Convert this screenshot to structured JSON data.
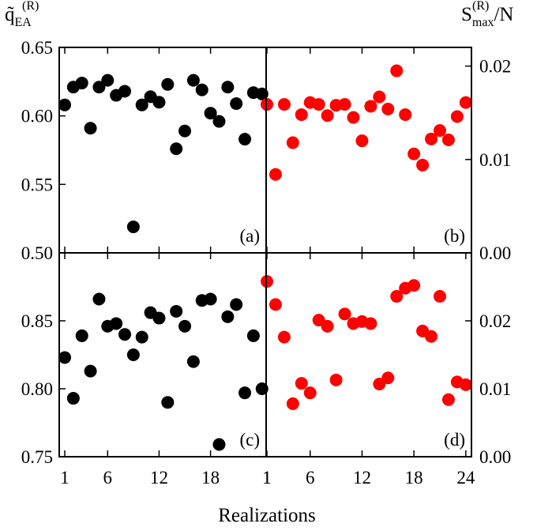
{
  "labels": {
    "left_axis_main": "q̃",
    "left_axis_sub": "EA",
    "left_axis_sup": "(R)",
    "right_axis_main": "S",
    "right_axis_sub": "max",
    "right_axis_sup": "(R)",
    "right_axis_suffix": "/N",
    "xlabel": "Realizations"
  },
  "chart_data": [
    {
      "panel": "(a)",
      "type": "scatter",
      "color": "#000000",
      "ylim": [
        0.5,
        0.65
      ],
      "yticks": [
        "0.50",
        "0.55",
        "0.60",
        "0.65"
      ],
      "xticks": [
        "1",
        "6",
        "12",
        "18"
      ],
      "x": [
        1,
        2,
        3,
        4,
        5,
        6,
        7,
        8,
        9,
        10,
        11,
        12,
        13,
        14,
        15,
        16,
        17,
        18,
        19,
        20,
        21,
        22,
        23,
        24
      ],
      "values": [
        0.608,
        0.621,
        0.624,
        0.591,
        0.621,
        0.626,
        0.615,
        0.618,
        0.519,
        0.608,
        0.614,
        0.61,
        0.623,
        0.576,
        0.589,
        0.626,
        0.619,
        0.602,
        0.596,
        0.621,
        0.609,
        0.583,
        0.617,
        0.616
      ]
    },
    {
      "panel": "(b)",
      "type": "scatter",
      "color": "#ff0000",
      "ylim": [
        0.0,
        0.022
      ],
      "yticks": [
        "0.00",
        "0.01",
        "0.02"
      ],
      "xticks": [
        "1",
        "6",
        "12",
        "18"
      ],
      "x": [
        1,
        2,
        3,
        4,
        5,
        6,
        7,
        8,
        9,
        10,
        11,
        12,
        13,
        14,
        15,
        16,
        17,
        18,
        19,
        20,
        21,
        22,
        23,
        24
      ],
      "values": [
        0.0159,
        0.0084,
        0.0159,
        0.0118,
        0.0148,
        0.0161,
        0.0159,
        0.0147,
        0.0158,
        0.0159,
        0.0145,
        0.012,
        0.0157,
        0.0167,
        0.0154,
        0.0195,
        0.0148,
        0.0106,
        0.0094,
        0.0122,
        0.0131,
        0.0121,
        0.0146,
        0.0161
      ]
    },
    {
      "panel": "(c)",
      "type": "scatter",
      "color": "#000000",
      "ylim": [
        0.75,
        0.9
      ],
      "yticks": [
        "0.75",
        "0.80",
        "0.85"
      ],
      "xticks": [
        "1",
        "6",
        "12",
        "18"
      ],
      "x": [
        1,
        2,
        3,
        4,
        5,
        6,
        7,
        8,
        9,
        10,
        11,
        12,
        13,
        14,
        15,
        16,
        17,
        18,
        19,
        20,
        21,
        22,
        23,
        24
      ],
      "values": [
        0.823,
        0.793,
        0.839,
        0.813,
        0.866,
        0.846,
        0.848,
        0.84,
        0.825,
        0.838,
        0.856,
        0.852,
        0.79,
        0.857,
        0.846,
        0.82,
        0.865,
        0.866,
        0.759,
        0.853,
        0.862,
        0.797,
        0.839,
        0.8
      ]
    },
    {
      "panel": "(d)",
      "type": "scatter",
      "color": "#ff0000",
      "ylim": [
        0.0,
        0.03
      ],
      "yticks": [
        "0.00",
        "0.01",
        "0.02"
      ],
      "xticks": [
        "1",
        "6",
        "12",
        "18",
        "24"
      ],
      "x": [
        1,
        2,
        3,
        4,
        5,
        6,
        7,
        8,
        9,
        10,
        11,
        12,
        13,
        14,
        15,
        16,
        17,
        18,
        19,
        20,
        21,
        22,
        23,
        24
      ],
      "values": [
        0.0258,
        0.0224,
        0.0176,
        0.0078,
        0.0108,
        0.0094,
        0.0201,
        0.0192,
        0.0113,
        0.021,
        0.0196,
        0.0199,
        0.0196,
        0.0107,
        0.0116,
        0.0236,
        0.0248,
        0.0252,
        0.0185,
        0.0177,
        0.0236,
        0.0084,
        0.011,
        0.0106
      ]
    }
  ]
}
